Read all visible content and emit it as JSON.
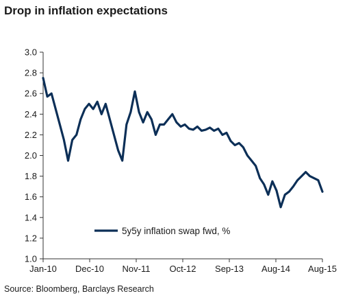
{
  "title": "Drop in inflation expectations",
  "source": "Source: Bloomberg, Barclays Research",
  "colors": {
    "series": "#0c2f57",
    "axis": "#333333"
  },
  "chart_data": {
    "type": "line",
    "ylim": [
      1.0,
      3.0
    ],
    "y_ticks": [
      "3.0",
      "2.8",
      "2.6",
      "2.4",
      "2.2",
      "2.0",
      "1.8",
      "1.6",
      "1.4",
      "1.2",
      "1.0"
    ],
    "x_ticks": [
      "Jan-10",
      "Dec-10",
      "Nov-11",
      "Oct-12",
      "Sep-13",
      "Aug-14",
      "Aug-15"
    ],
    "xlim": [
      "Jan-10",
      "Aug-15"
    ],
    "grid": false,
    "legend_position": "bottom-center",
    "series": [
      {
        "name": "5y5y inflation swap fwd, %",
        "x": [
          "Jan-10",
          "Feb-10",
          "Mar-10",
          "Apr-10",
          "May-10",
          "Jun-10",
          "Jul-10",
          "Aug-10",
          "Sep-10",
          "Oct-10",
          "Nov-10",
          "Dec-10",
          "Jan-11",
          "Feb-11",
          "Mar-11",
          "Apr-11",
          "May-11",
          "Jun-11",
          "Jul-11",
          "Aug-11",
          "Sep-11",
          "Oct-11",
          "Nov-11",
          "Dec-11",
          "Jan-12",
          "Feb-12",
          "Mar-12",
          "Apr-12",
          "May-12",
          "Jun-12",
          "Jul-12",
          "Aug-12",
          "Sep-12",
          "Oct-12",
          "Nov-12",
          "Dec-12",
          "Jan-13",
          "Feb-13",
          "Mar-13",
          "Apr-13",
          "May-13",
          "Jun-13",
          "Jul-13",
          "Aug-13",
          "Sep-13",
          "Oct-13",
          "Nov-13",
          "Dec-13",
          "Jan-14",
          "Feb-14",
          "Mar-14",
          "Apr-14",
          "May-14",
          "Jun-14",
          "Jul-14",
          "Aug-14",
          "Sep-14",
          "Oct-14",
          "Nov-14",
          "Dec-14",
          "Jan-15",
          "Feb-15",
          "Mar-15",
          "Apr-15",
          "May-15",
          "Jun-15",
          "Jul-15",
          "Aug-15"
        ],
        "values": [
          2.75,
          2.57,
          2.6,
          2.45,
          2.3,
          2.15,
          1.95,
          2.15,
          2.2,
          2.35,
          2.45,
          2.5,
          2.45,
          2.52,
          2.4,
          2.5,
          2.35,
          2.2,
          2.05,
          1.95,
          2.3,
          2.42,
          2.62,
          2.42,
          2.32,
          2.42,
          2.35,
          2.2,
          2.3,
          2.3,
          2.35,
          2.4,
          2.32,
          2.28,
          2.3,
          2.26,
          2.25,
          2.28,
          2.24,
          2.25,
          2.27,
          2.24,
          2.26,
          2.2,
          2.22,
          2.14,
          2.1,
          2.12,
          2.08,
          2.0,
          1.95,
          1.9,
          1.78,
          1.72,
          1.62,
          1.75,
          1.66,
          1.5,
          1.62,
          1.65,
          1.7,
          1.76,
          1.8,
          1.84,
          1.8,
          1.78,
          1.76,
          1.65
        ]
      }
    ]
  }
}
